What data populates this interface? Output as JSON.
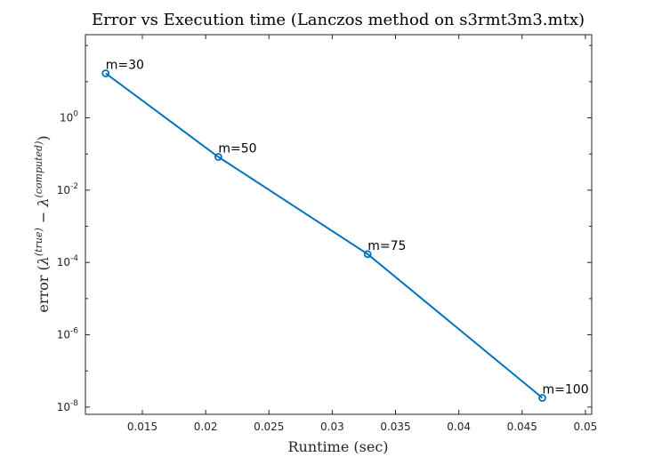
{
  "chart_data": {
    "type": "line",
    "title": "Error vs Execution time (Lanczos method on s3rmt3m3.mtx)",
    "xlabel": "Runtime (sec)",
    "ylabel": {
      "prefix": "error (",
      "lambda": "λ",
      "sup_true": "(true)",
      "minus": " − ",
      "sup_computed": "(computed)",
      "suffix": ")"
    },
    "xlim": [
      0.0105,
      0.0505
    ],
    "ylim_log10": [
      -8.2,
      2.3
    ],
    "y_scale": "log",
    "grid": false,
    "x_ticks": [
      0.015,
      0.02,
      0.025,
      0.03,
      0.035,
      0.04,
      0.045,
      0.05
    ],
    "x_tick_labels": [
      "0.015",
      "0.02",
      "0.025",
      "0.03",
      "0.035",
      "0.04",
      "0.045",
      "0.05"
    ],
    "y_ticks": [
      {
        "base": "10",
        "exp": "0",
        "log": 0
      },
      {
        "base": "10",
        "exp": "-2",
        "log": -2
      },
      {
        "base": "10",
        "exp": "-4",
        "log": -4
      },
      {
        "base": "10",
        "exp": "-6",
        "log": -6
      },
      {
        "base": "10",
        "exp": "-8",
        "log": -8
      }
    ],
    "series": [
      {
        "color": "#0072BD",
        "marker": "circle",
        "points": [
          {
            "x": 0.0121,
            "y": 17.0,
            "label": "m=30"
          },
          {
            "x": 0.021,
            "y": 0.083,
            "label": "m=50"
          },
          {
            "x": 0.0328,
            "y": 0.00017,
            "label": "m=75"
          },
          {
            "x": 0.0466,
            "y": 1.8e-08,
            "label": "m=100"
          }
        ]
      }
    ]
  }
}
